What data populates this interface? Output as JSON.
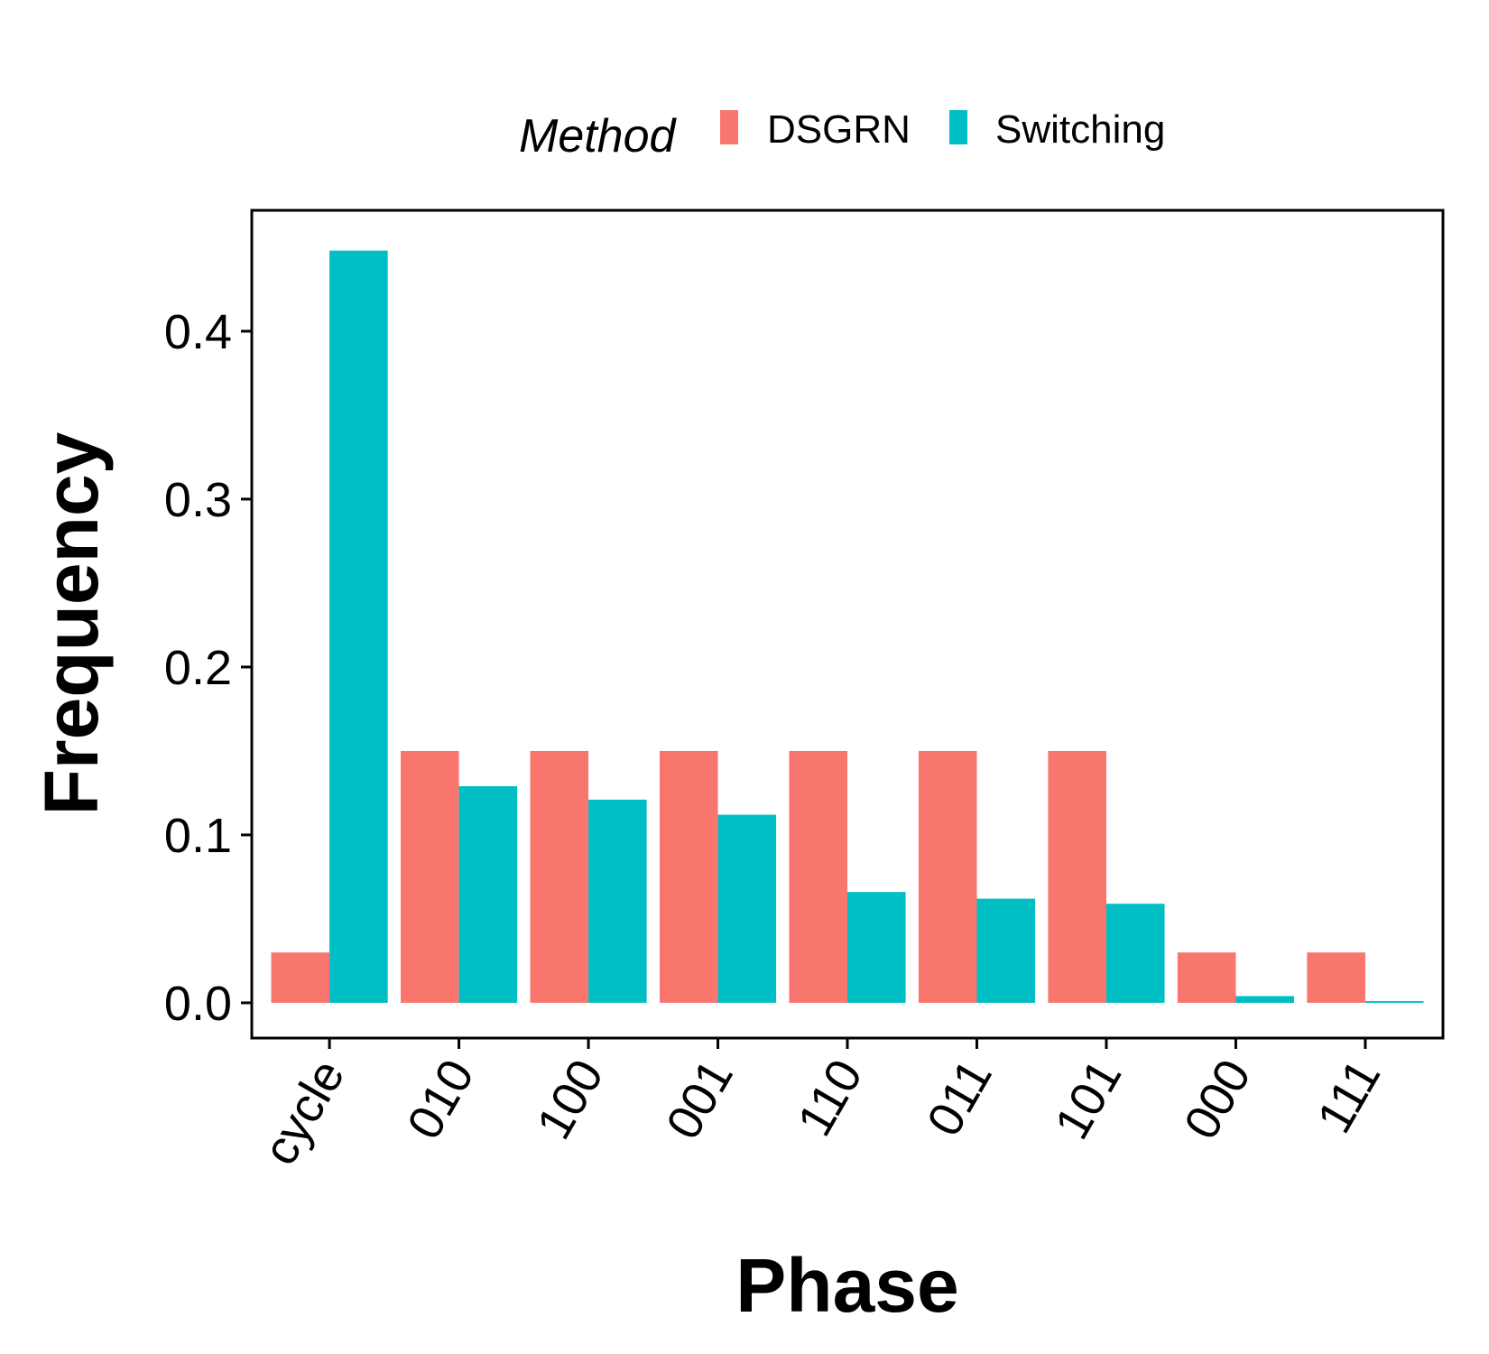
{
  "chart_data": {
    "type": "bar",
    "title": "",
    "xlabel": "Phase",
    "ylabel": "Frequency",
    "categories": [
      "cycle",
      "010",
      "100",
      "001",
      "110",
      "011",
      "101",
      "000",
      "111"
    ],
    "series": [
      {
        "name": "DSGRN",
        "color": "#F8766D",
        "values": [
          0.03,
          0.15,
          0.15,
          0.15,
          0.15,
          0.15,
          0.15,
          0.03,
          0.03
        ]
      },
      {
        "name": "Switching",
        "color": "#00BFC4",
        "values": [
          0.448,
          0.129,
          0.121,
          0.112,
          0.066,
          0.062,
          0.059,
          0.004,
          0.001
        ]
      }
    ],
    "ylim": [
      -0.021,
      0.472
    ],
    "yticks": [
      "0.0",
      "0.1",
      "0.2",
      "0.3",
      "0.4"
    ],
    "legend": {
      "title": "Method",
      "position": "top"
    },
    "grid": false
  }
}
